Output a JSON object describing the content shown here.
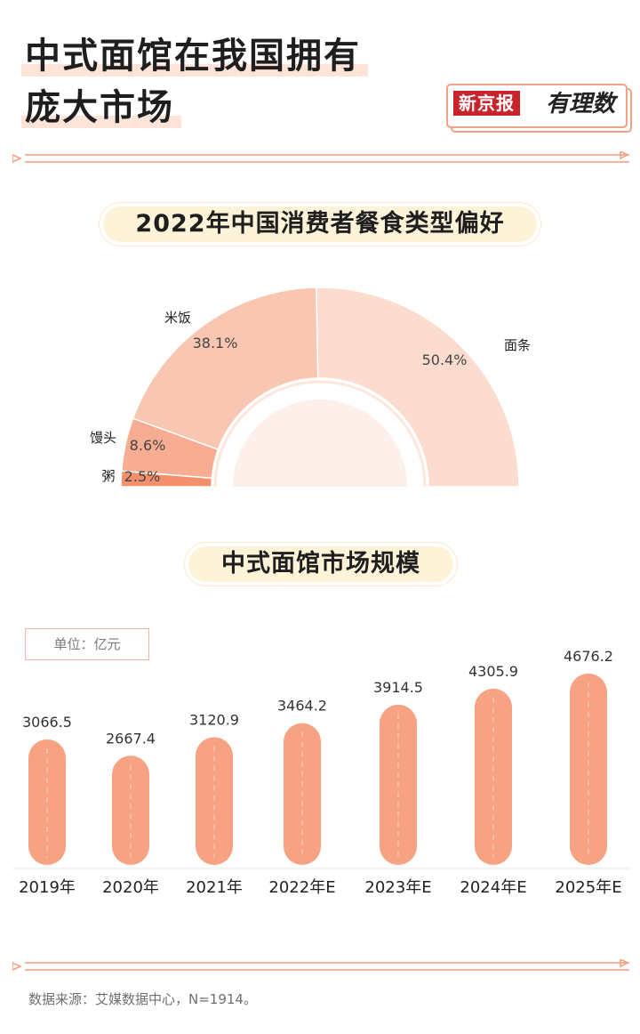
{
  "header": {
    "title_line1": "中式面馆在我国拥有",
    "title_line2": "庞大市场",
    "brand_red": "新京报",
    "brand_script": "有理数"
  },
  "pie_section": {
    "title": "2022年中国消费者餐食类型偏好"
  },
  "bar_section": {
    "title": "中式面馆市场规模",
    "unit_label": "单位：亿元"
  },
  "footer": {
    "source": "数据来源：艾媒数据中心，N=1914。"
  },
  "colors": {
    "accent": "#f29b7b",
    "bar": "#f7a283",
    "noodle_slice": "#fcdccf",
    "rice_slice": "#f9c6b2",
    "mantou_slice": "#f7ad92",
    "porridge_slice": "#f48f6c"
  },
  "chart_data": [
    {
      "type": "pie",
      "title": "2022年中国消费者餐食类型偏好",
      "slices": [
        {
          "name": "面条",
          "value": 50.4,
          "label": "50.4%"
        },
        {
          "name": "米饭",
          "value": 38.1,
          "label": "38.1%"
        },
        {
          "name": "馒头",
          "value": 8.6,
          "label": "8.6%"
        },
        {
          "name": "粥",
          "value": 2.5,
          "label": "2.5%"
        }
      ]
    },
    {
      "type": "bar",
      "title": "中式面馆市场规模",
      "unit": "单位：亿元",
      "categories": [
        "2019年",
        "2020年",
        "2021年",
        "2022年E",
        "2023年E",
        "2024年E",
        "2025年E"
      ],
      "values": [
        3066.5,
        2667.4,
        3120.9,
        3464.2,
        3914.5,
        4305.9,
        4676.2
      ],
      "labels": [
        "3066.5",
        "2667.4",
        "3120.9",
        "3464.2",
        "3914.5",
        "4305.9",
        "4676.2"
      ]
    }
  ]
}
